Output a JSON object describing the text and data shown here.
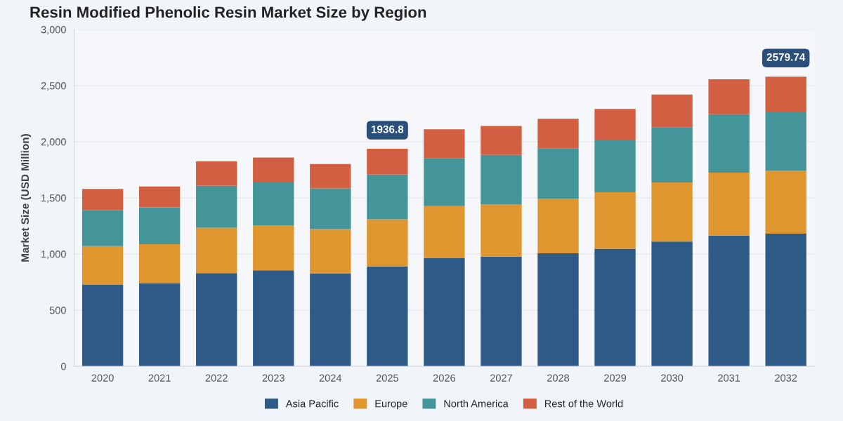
{
  "chart_data": {
    "type": "bar",
    "title": "Resin Modified Phenolic Resin Market Size by Region",
    "ylabel": "Market Size (USD Million)",
    "categories": [
      "2020",
      "2021",
      "2022",
      "2023",
      "2024",
      "2025",
      "2026",
      "2027",
      "2028",
      "2029",
      "2030",
      "2031",
      "2032"
    ],
    "stacked": true,
    "series": [
      {
        "name": "Asia Pacific",
        "color": "#2e5a87",
        "values": [
          725,
          737,
          830,
          854,
          825,
          889,
          965,
          977,
          1006,
          1047,
          1111,
          1164,
          1181
        ]
      },
      {
        "name": "Europe",
        "color": "#e0962e",
        "values": [
          345,
          351,
          404,
          403,
          397,
          421,
          462,
          467,
          485,
          503,
          526,
          561,
          562
        ]
      },
      {
        "name": "North America",
        "color": "#43959a",
        "values": [
          322,
          327,
          374,
          380,
          363,
          398,
          427,
          439,
          451,
          462,
          492,
          521,
          526
        ]
      },
      {
        "name": "Rest of the World",
        "color": "#d35f42",
        "values": [
          187,
          187,
          217,
          223,
          216,
          229,
          257,
          257,
          263,
          280,
          292,
          310,
          311
        ]
      }
    ],
    "ylim": [
      0,
      3000
    ],
    "yticks": [
      0,
      {
        "value": 500,
        "label": "500"
      },
      {
        "value": 1000,
        "label": "1,000"
      },
      {
        "value": 1500,
        "label": "1,500"
      },
      {
        "value": 2000,
        "label": "2,000"
      },
      {
        "value": 2500,
        "label": "2,500"
      },
      {
        "value": 3000,
        "label": "3,000"
      }
    ],
    "annotations": [
      {
        "text": "1936.8",
        "x": "2025",
        "y": 1936.8
      },
      {
        "text": "2579.74",
        "x": "2032",
        "y": 2579.74
      }
    ],
    "grid": "y",
    "legend": "bottom"
  }
}
